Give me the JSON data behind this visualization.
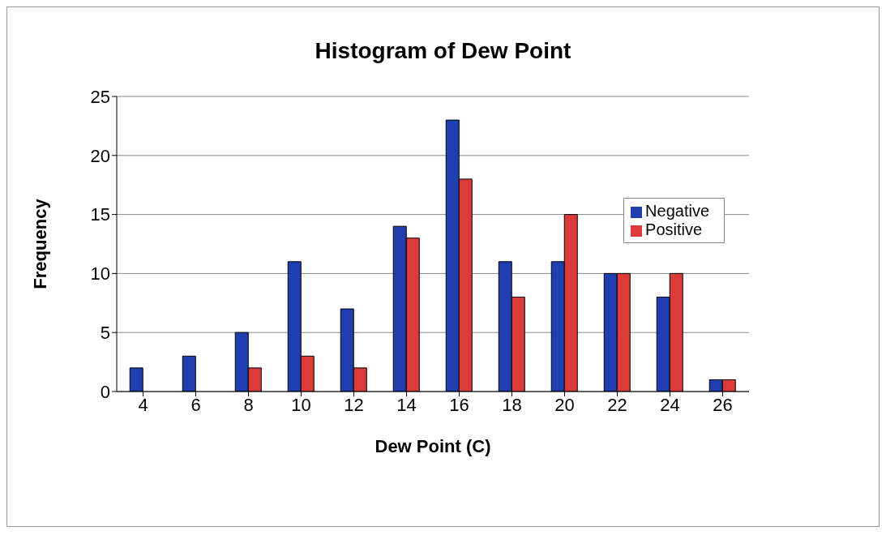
{
  "chart_data": {
    "type": "bar",
    "title": "Histogram of Dew Point",
    "xlabel": "Dew Point (C)",
    "ylabel": "Frequency",
    "categories": [
      "4",
      "6",
      "8",
      "10",
      "12",
      "14",
      "16",
      "18",
      "20",
      "22",
      "24",
      "26"
    ],
    "series": [
      {
        "name": "Negative",
        "color": "#1f3fb0",
        "values": [
          2,
          3,
          5,
          11,
          7,
          14,
          23,
          11,
          11,
          10,
          8,
          1
        ]
      },
      {
        "name": "Positive",
        "color": "#dc3b3b",
        "values": [
          0,
          0,
          2,
          3,
          2,
          13,
          18,
          8,
          15,
          10,
          10,
          1
        ]
      }
    ],
    "ylim": [
      0,
      25
    ],
    "yticks": [
      0,
      5,
      10,
      15,
      20,
      25
    ],
    "grid": "y",
    "legend": "top right"
  }
}
